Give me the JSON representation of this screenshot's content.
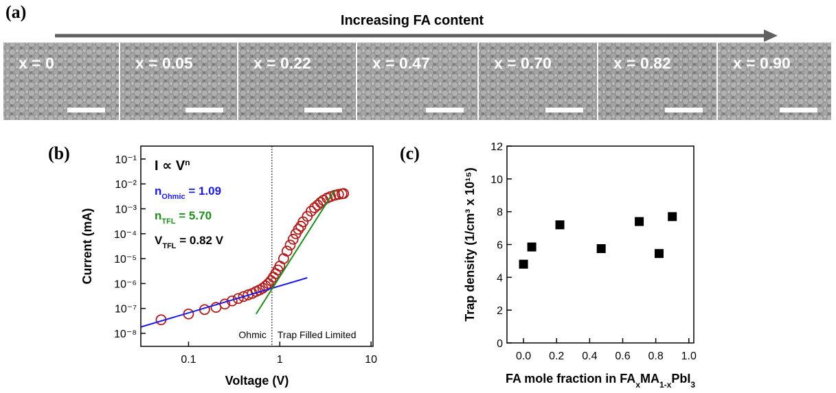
{
  "panel_labels": [
    "(a)",
    "(b)",
    "(c)"
  ],
  "sem": {
    "title": "Increasing FA content",
    "labels": [
      "x = 0",
      "x = 0.05",
      "x = 0.22",
      "x = 0.47",
      "x = 0.70",
      "x = 0.82",
      "x = 0.90"
    ]
  },
  "chart_data": [
    {
      "type": "scatter",
      "xlabel": "Voltage (V)",
      "ylabel": "Current (mA)",
      "xscale": "log",
      "yscale": "log",
      "xlim": [
        0.03,
        10.5
      ],
      "ylim": [
        3e-09,
        0.33
      ],
      "xticks": [
        0.1,
        1,
        10
      ],
      "yticks": [
        {
          "value": 1e-08,
          "label": "10⁻⁸"
        },
        {
          "value": 1e-07,
          "label": "10⁻⁷"
        },
        {
          "value": 1e-06,
          "label": "10⁻⁶"
        },
        {
          "value": 1e-05,
          "label": "10⁻⁵"
        },
        {
          "value": 0.0001,
          "label": "10⁻⁴"
        },
        {
          "value": 0.001,
          "label": "10⁻³"
        },
        {
          "value": 0.01,
          "label": "10⁻²"
        },
        {
          "value": 0.1,
          "label": "10⁻¹"
        }
      ],
      "series": [
        {
          "kind": "points",
          "color": "#b01c1c",
          "x": [
            0.05,
            0.1,
            0.15,
            0.2,
            0.25,
            0.3,
            0.35,
            0.4,
            0.45,
            0.5,
            0.55,
            0.6,
            0.65,
            0.7,
            0.75,
            0.8,
            0.85,
            0.9,
            0.95,
            1.0,
            1.1,
            1.2,
            1.3,
            1.4,
            1.5,
            1.6,
            1.7,
            1.8,
            2.0,
            2.2,
            2.4,
            2.6,
            2.8,
            3.0,
            3.3,
            3.6,
            4.0,
            4.4,
            4.8,
            5.0
          ],
          "values": [
            3.5e-08,
            6e-08,
            9e-08,
            1.1e-07,
            1.5e-07,
            2e-07,
            2.5e-07,
            3e-07,
            3.5e-07,
            4e-07,
            4.8e-07,
            5.5e-07,
            6.5e-07,
            8e-07,
            1e-06,
            1.3e-06,
            1.8e-06,
            2.5e-06,
            3.5e-06,
            5e-06,
            1e-05,
            2e-05,
            3.5e-05,
            6e-05,
            0.0001,
            0.00015,
            0.0002,
            0.0003,
            0.0005,
            0.0008,
            0.0011,
            0.0014,
            0.0018,
            0.0022,
            0.0027,
            0.0031,
            0.0035,
            0.0038,
            0.004,
            0.0041
          ]
        },
        {
          "kind": "line",
          "color": "#1a1ae0",
          "x": [
            0.03,
            2
          ],
          "values": [
            1.8e-08,
            1.7e-06
          ]
        },
        {
          "kind": "line",
          "color": "#1e8c1e",
          "x": [
            0.55,
            4
          ],
          "values": [
            6e-08,
            0.0056
          ]
        }
      ],
      "vline": 0.82,
      "annotations": [
        {
          "text": "I ∝ V",
          "sup": "n",
          "color": "#000000"
        },
        {
          "text": "n",
          "sub": "Ohmic",
          "tail": " = 1.09",
          "color": "#1a1ae0"
        },
        {
          "text": "n",
          "sub": "TFL",
          "tail": " = 5.70",
          "color": "#1e8c1e"
        },
        {
          "text": "V",
          "sub": "TFL",
          "tail": " = 0.82 V",
          "color": "#000000"
        }
      ],
      "regions": [
        "Ohmic",
        "Trap Filled Limited"
      ]
    },
    {
      "type": "scatter",
      "ylabel": "Trap density (1/cm³ x 10¹⁵)",
      "xlabel_parts": [
        {
          "t": "FA mole fraction in FA"
        },
        {
          "t": "x",
          "sub": true
        },
        {
          "t": "MA"
        },
        {
          "t": "1-x",
          "sub": true
        },
        {
          "t": "PbI"
        },
        {
          "t": "3",
          "sub": true
        }
      ],
      "xlim": [
        -0.1,
        1.03
      ],
      "ylim": [
        0,
        12
      ],
      "xticks": [
        {
          "value": 0,
          "label": "0.0"
        },
        {
          "value": 0.2,
          "label": "0.2"
        },
        {
          "value": 0.4,
          "label": "0.4"
        },
        {
          "value": 0.6,
          "label": "0.6"
        },
        {
          "value": 0.8,
          "label": "0.8"
        },
        {
          "value": 1,
          "label": "1.0"
        }
      ],
      "yticks": [
        0,
        2,
        4,
        6,
        8,
        10,
        12
      ],
      "series": [
        {
          "kind": "squares",
          "color": "#000000",
          "x": [
            0,
            0.05,
            0.22,
            0.47,
            0.7,
            0.82,
            0.9
          ],
          "values": [
            4.8,
            5.85,
            7.2,
            5.75,
            7.4,
            5.45,
            7.7
          ]
        }
      ]
    }
  ]
}
